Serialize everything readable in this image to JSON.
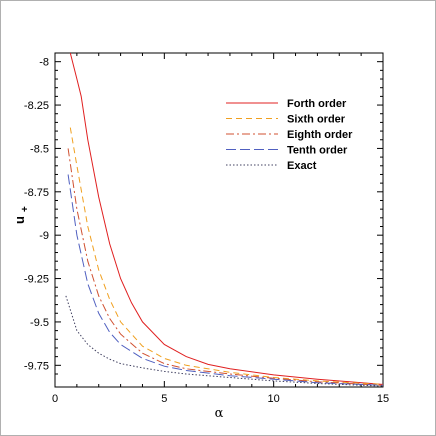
{
  "chart_data": {
    "type": "line",
    "title": "",
    "xlabel": "α",
    "ylabel": "u",
    "ylabel_subscript": "+",
    "xlim": [
      0,
      15
    ],
    "ylim": [
      -9.875,
      -7.95
    ],
    "x_ticks": [
      0,
      5,
      10,
      15
    ],
    "x_tick_labels": [
      "0",
      "5",
      "10",
      "15"
    ],
    "y_ticks": [
      -8,
      -8.25,
      -8.5,
      -8.75,
      -9,
      -9.25,
      -9.5,
      -9.75
    ],
    "y_tick_labels": [
      "-8",
      "-8.25",
      "-8.5",
      "-8.75",
      "-9",
      "-9.25",
      "-9.5",
      "-9.75"
    ],
    "grid": false,
    "legend_position": "top-right",
    "series": [
      {
        "name": "Forth order",
        "color": "#e02020",
        "dash": "solid",
        "x": [
          0.7,
          1.0,
          1.2,
          1.5,
          2,
          2.5,
          3,
          3.5,
          4,
          5,
          6,
          7,
          8,
          10,
          12,
          15
        ],
        "y": [
          -7.95,
          -8.1,
          -8.2,
          -8.45,
          -8.78,
          -9.05,
          -9.25,
          -9.39,
          -9.5,
          -9.63,
          -9.7,
          -9.745,
          -9.77,
          -9.805,
          -9.83,
          -9.86
        ]
      },
      {
        "name": "Sixth order",
        "color": "#f0a020",
        "dash": "6,4",
        "x": [
          0.7,
          1.0,
          1.5,
          2,
          2.5,
          3,
          4,
          5,
          6,
          8,
          10,
          12,
          15
        ],
        "y": [
          -8.38,
          -8.6,
          -8.95,
          -9.2,
          -9.37,
          -9.5,
          -9.64,
          -9.71,
          -9.75,
          -9.79,
          -9.82,
          -9.84,
          -9.86
        ]
      },
      {
        "name": "Eighth order",
        "color": "#d05030",
        "dash": "8,3,2,3",
        "x": [
          0.6,
          1.0,
          1.5,
          2,
          2.5,
          3,
          4,
          5,
          6,
          8,
          10,
          12,
          15
        ],
        "y": [
          -8.5,
          -8.85,
          -9.15,
          -9.35,
          -9.48,
          -9.57,
          -9.68,
          -9.74,
          -9.77,
          -9.8,
          -9.825,
          -9.845,
          -9.865
        ]
      },
      {
        "name": "Tenth order",
        "color": "#5060c0",
        "dash": "10,4",
        "x": [
          0.6,
          1.0,
          1.5,
          2,
          2.5,
          3,
          4,
          5,
          6,
          8,
          10,
          12,
          15
        ],
        "y": [
          -8.65,
          -9.0,
          -9.28,
          -9.45,
          -9.56,
          -9.63,
          -9.71,
          -9.755,
          -9.78,
          -9.81,
          -9.83,
          -9.85,
          -9.865
        ]
      },
      {
        "name": "Exact",
        "color": "#404060",
        "dash": "1.5,2",
        "x": [
          0.5,
          0.8,
          1.0,
          1.5,
          2,
          2.5,
          3,
          4,
          5,
          6,
          8,
          10,
          12,
          15
        ],
        "y": [
          -9.35,
          -9.47,
          -9.55,
          -9.63,
          -9.68,
          -9.715,
          -9.74,
          -9.765,
          -9.785,
          -9.8,
          -9.82,
          -9.84,
          -9.855,
          -9.87
        ]
      }
    ]
  }
}
